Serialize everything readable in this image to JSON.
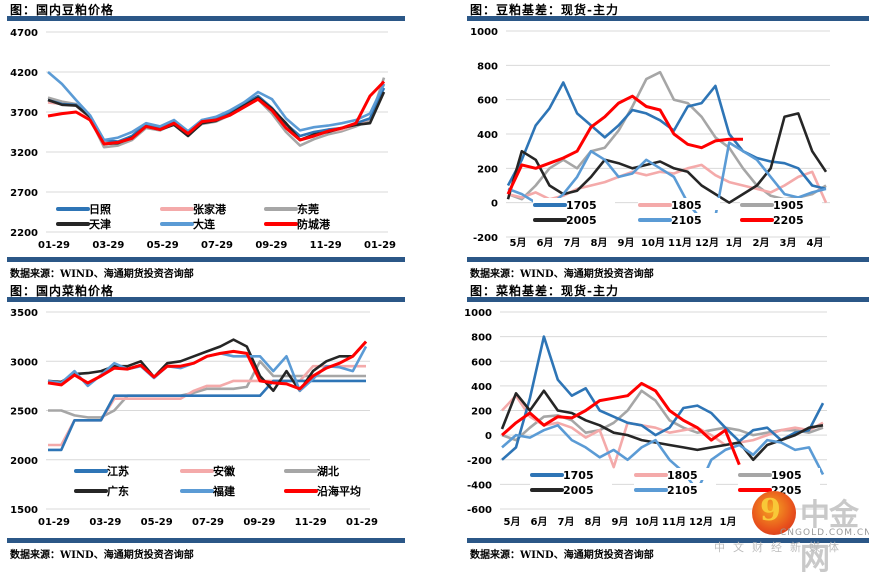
{
  "source_text": "数据来源：WIND、海通期货投资咨询部",
  "watermark": {
    "logo_glyph": "9",
    "name": "中金网",
    "url": "CNGOLD.COM.CN",
    "tagline": "中文财经新媒体"
  },
  "panels": [
    {
      "title": "图：国内豆粕价格",
      "source": "数据来源：WIND、海通期货投资咨询部"
    },
    {
      "title": "图：豆粕基差：现货-主力",
      "source": "数据来源：WIND、海通期货投资咨询部"
    },
    {
      "title": "图：国内菜粕价格",
      "source": "数据来源：WIND、海通期货投资咨询部"
    },
    {
      "title": "图：菜粕基差：现货-主力",
      "source": "数据来源：WIND、海通期货投资咨询部"
    }
  ],
  "chart_data": [
    {
      "type": "line",
      "title": "图：国内豆粕价格",
      "xlabel": "",
      "ylabel": "",
      "ylim": [
        2200,
        4700
      ],
      "yticks": [
        2200,
        2700,
        3200,
        3700,
        4200,
        4700
      ],
      "xticks": [
        "01-29",
        "03-29",
        "05-29",
        "07-29",
        "09-29",
        "11-29",
        "01-29"
      ],
      "grid": true,
      "legend_position": "inside-bottom",
      "x": [
        0,
        1,
        2,
        3,
        4,
        5,
        6,
        7,
        8,
        9,
        10,
        11,
        12,
        13,
        14,
        15,
        16,
        17,
        18,
        19,
        20,
        21,
        22,
        23,
        24
      ],
      "series": [
        {
          "name": "日照",
          "color": "#2e75b6",
          "values": [
            3850,
            3800,
            3790,
            3650,
            3350,
            3330,
            3400,
            3550,
            3500,
            3580,
            3450,
            3600,
            3620,
            3700,
            3800,
            3900,
            3750,
            3550,
            3400,
            3450,
            3480,
            3500,
            3560,
            3620,
            4000
          ]
        },
        {
          "name": "张家港",
          "color": "#f4aaaa",
          "values": [
            3820,
            3800,
            3780,
            3620,
            3320,
            3320,
            3380,
            3520,
            3480,
            3560,
            3430,
            3560,
            3600,
            3680,
            3780,
            3880,
            3720,
            3500,
            3350,
            3400,
            3450,
            3480,
            3540,
            3620,
            4050
          ]
        },
        {
          "name": "东莞",
          "color": "#a6a6a6",
          "values": [
            3880,
            3830,
            3800,
            3620,
            3260,
            3280,
            3350,
            3500,
            3470,
            3550,
            3420,
            3550,
            3580,
            3660,
            3760,
            3860,
            3680,
            3450,
            3280,
            3360,
            3420,
            3460,
            3520,
            3600,
            4130
          ]
        },
        {
          "name": "天津",
          "color": "#262626",
          "values": [
            3850,
            3790,
            3780,
            3640,
            3300,
            3310,
            3380,
            3520,
            3480,
            3540,
            3400,
            3560,
            3590,
            3670,
            3780,
            3880,
            3740,
            3560,
            3350,
            3420,
            3450,
            3500,
            3540,
            3560,
            3950
          ]
        },
        {
          "name": "大连",
          "color": "#5b9bd5",
          "values": [
            4200,
            4050,
            3850,
            3660,
            3350,
            3380,
            3450,
            3560,
            3520,
            3600,
            3460,
            3600,
            3640,
            3720,
            3820,
            3950,
            3860,
            3620,
            3470,
            3510,
            3530,
            3560,
            3600,
            3680,
            4050
          ]
        },
        {
          "name": "防城港",
          "color": "#ff0000",
          "values": [
            3650,
            3680,
            3700,
            3600,
            3300,
            3320,
            3370,
            3520,
            3480,
            3560,
            3430,
            3580,
            3600,
            3660,
            3760,
            3860,
            3720,
            3500,
            3350,
            3400,
            3460,
            3500,
            3560,
            3900,
            4080
          ]
        }
      ]
    },
    {
      "type": "line",
      "title": "图：豆粕基差：现货-主力",
      "xlabel": "",
      "ylabel": "",
      "ylim": [
        -200,
        1000
      ],
      "yticks": [
        -200,
        0,
        200,
        400,
        600,
        800,
        1000
      ],
      "xticks": [
        "5月",
        "6月",
        "7月",
        "8月",
        "9月",
        "10月",
        "11月",
        "12月",
        "1月",
        "2月",
        "3月",
        "4月"
      ],
      "grid": true,
      "legend_position": "inside-bottom",
      "x": [
        0,
        0.5,
        1,
        1.5,
        2,
        2.5,
        3,
        3.5,
        4,
        4.5,
        5,
        5.5,
        6,
        6.5,
        7,
        7.5,
        8,
        8.5,
        9,
        9.5,
        10,
        10.5,
        11,
        11.5
      ],
      "series": [
        {
          "name": "1705",
          "color": "#2e75b6",
          "values": [
            100,
            250,
            450,
            550,
            700,
            520,
            450,
            380,
            450,
            540,
            520,
            480,
            420,
            560,
            580,
            680,
            400,
            300,
            260,
            240,
            230,
            200,
            100,
            80
          ]
        },
        {
          "name": "1805",
          "color": "#f4aaaa",
          "values": [
            50,
            30,
            60,
            20,
            40,
            80,
            100,
            120,
            150,
            180,
            160,
            180,
            170,
            200,
            220,
            160,
            120,
            100,
            80,
            60,
            100,
            150,
            180,
            0
          ]
        },
        {
          "name": "1905",
          "color": "#a6a6a6",
          "values": [
            50,
            20,
            100,
            200,
            250,
            200,
            300,
            320,
            420,
            560,
            720,
            760,
            600,
            580,
            500,
            380,
            320,
            200,
            100,
            40,
            20,
            30,
            50,
            100
          ]
        },
        {
          "name": "2005",
          "color": "#262626",
          "values": [
            20,
            300,
            250,
            100,
            50,
            70,
            150,
            250,
            230,
            200,
            220,
            240,
            200,
            180,
            100,
            50,
            0,
            50,
            100,
            200,
            500,
            520,
            300,
            180
          ]
        },
        {
          "name": "2105",
          "color": "#5b9bd5",
          "values": [
            80,
            50,
            0,
            -20,
            50,
            150,
            300,
            250,
            150,
            170,
            250,
            200,
            150,
            0,
            -100,
            -80,
            350,
            300,
            250,
            150,
            50,
            30,
            60,
            80
          ]
        },
        {
          "name": "2205",
          "color": "#ff0000",
          "values": [
            50,
            220,
            200,
            230,
            260,
            300,
            440,
            500,
            580,
            620,
            560,
            540,
            400,
            340,
            320,
            360,
            370,
            370,
            null,
            null,
            null,
            null,
            null,
            null
          ]
        }
      ]
    },
    {
      "type": "line",
      "title": "图：国内菜粕价格",
      "xlabel": "",
      "ylabel": "",
      "ylim": [
        1500,
        3500
      ],
      "yticks": [
        1500,
        2000,
        2500,
        3000,
        3500
      ],
      "xticks": [
        "01-29",
        "03-29",
        "05-29",
        "07-29",
        "09-29",
        "11-29",
        "01-29"
      ],
      "grid": true,
      "legend_position": "inside-bottom",
      "x": [
        0,
        1,
        2,
        3,
        4,
        5,
        6,
        7,
        8,
        9,
        10,
        11,
        12,
        13,
        14,
        15,
        16,
        17,
        18,
        19,
        20,
        21,
        22,
        23,
        24
      ],
      "series": [
        {
          "name": "江苏",
          "color": "#2e75b6",
          "values": [
            2100,
            2100,
            2400,
            2400,
            2400,
            2650,
            2650,
            2650,
            2650,
            2650,
            2650,
            2650,
            2650,
            2650,
            2650,
            2650,
            2650,
            2800,
            2800,
            2800,
            2800,
            2800,
            2800,
            2800,
            2800
          ]
        },
        {
          "name": "安徽",
          "color": "#f4aaaa",
          "values": [
            2150,
            2150,
            2400,
            2400,
            2400,
            2620,
            2620,
            2620,
            2620,
            2620,
            2620,
            2700,
            2750,
            2750,
            2800,
            2800,
            2800,
            2800,
            2800,
            2800,
            2950,
            2950,
            2950,
            2950,
            2950
          ]
        },
        {
          "name": "湖北",
          "color": "#a6a6a6",
          "values": [
            2500,
            2500,
            2450,
            2430,
            2430,
            2500,
            2650,
            2650,
            2650,
            2650,
            2650,
            2680,
            2720,
            2720,
            2720,
            2740,
            3000,
            2850,
            2850,
            2850,
            2850,
            2850,
            2850,
            2850,
            2850
          ]
        },
        {
          "name": "广东",
          "color": "#262626",
          "values": [
            2800,
            2790,
            2870,
            2880,
            2900,
            2950,
            2950,
            3000,
            2840,
            2980,
            3000,
            3050,
            3100,
            3150,
            3220,
            3150,
            2850,
            2700,
            2900,
            2700,
            2900,
            3000,
            3050,
            3050,
            3200
          ]
        },
        {
          "name": "福建",
          "color": "#5b9bd5",
          "values": [
            2800,
            2780,
            2900,
            2750,
            2860,
            2980,
            2920,
            2950,
            2830,
            2950,
            2930,
            2980,
            3050,
            3080,
            3050,
            3050,
            3050,
            2900,
            3050,
            2700,
            2820,
            2950,
            2940,
            2900,
            3150
          ]
        },
        {
          "name": "沿海平均",
          "color": "#ff0000",
          "values": [
            2780,
            2760,
            2860,
            2780,
            2850,
            2930,
            2920,
            2960,
            2840,
            2950,
            2950,
            2980,
            3050,
            3080,
            3100,
            3080,
            2800,
            2780,
            2770,
            2720,
            2850,
            2930,
            2980,
            3050,
            3200
          ]
        }
      ]
    },
    {
      "type": "line",
      "title": "图：菜粕基差：现货-主力",
      "xlabel": "",
      "ylabel": "",
      "ylim": [
        -600,
        1000
      ],
      "yticks": [
        -600,
        -400,
        -200,
        0,
        200,
        400,
        600,
        800,
        1000
      ],
      "xticks": [
        "5月",
        "6月",
        "7月",
        "8月",
        "9月",
        "10月",
        "11月",
        "12月",
        "1月"
      ],
      "grid": true,
      "legend_position": "inside-bottom",
      "x": [
        0,
        0.5,
        1,
        1.5,
        2,
        2.5,
        3,
        3.5,
        4,
        4.5,
        5,
        5.5,
        6,
        6.5,
        7,
        7.5,
        8,
        8.5,
        9,
        9.5,
        10,
        10.5,
        11,
        11.5
      ],
      "series": [
        {
          "name": "1705",
          "color": "#2e75b6",
          "values": [
            -200,
            -100,
            300,
            800,
            450,
            320,
            380,
            200,
            150,
            100,
            80,
            0,
            60,
            220,
            240,
            180,
            60,
            -50,
            40,
            60,
            -40,
            20,
            40,
            260
          ]
        },
        {
          "name": "1805",
          "color": "#f4aaaa",
          "values": [
            200,
            320,
            150,
            80,
            100,
            60,
            -20,
            40,
            -260,
            100,
            80,
            60,
            20,
            40,
            60,
            0,
            -80,
            -60,
            -40,
            0,
            40,
            60,
            40,
            100
          ]
        },
        {
          "name": "1905",
          "color": "#a6a6a6",
          "values": [
            0,
            -40,
            60,
            150,
            160,
            120,
            20,
            40,
            100,
            200,
            360,
            280,
            120,
            60,
            20,
            40,
            60,
            40,
            0,
            20,
            40,
            40,
            20,
            60
          ]
        },
        {
          "name": "2005",
          "color": "#262626",
          "values": [
            50,
            340,
            200,
            360,
            200,
            180,
            120,
            80,
            20,
            0,
            -40,
            -60,
            -80,
            -100,
            -120,
            -100,
            -80,
            -60,
            -200,
            -80,
            -40,
            0,
            60,
            80
          ]
        },
        {
          "name": "2105",
          "color": "#5b9bd5",
          "values": [
            -100,
            0,
            -20,
            40,
            80,
            -40,
            -100,
            -180,
            -120,
            -200,
            -100,
            -40,
            -200,
            -300,
            -450,
            -200,
            -120,
            -80,
            -160,
            -40,
            -60,
            -120,
            -100,
            -320
          ]
        },
        {
          "name": "2205",
          "color": "#ff0000",
          "values": [
            0,
            100,
            180,
            80,
            150,
            140,
            200,
            280,
            300,
            320,
            420,
            360,
            200,
            120,
            60,
            -40,
            40,
            -240,
            null,
            null,
            null,
            null,
            null,
            null
          ]
        }
      ]
    }
  ]
}
